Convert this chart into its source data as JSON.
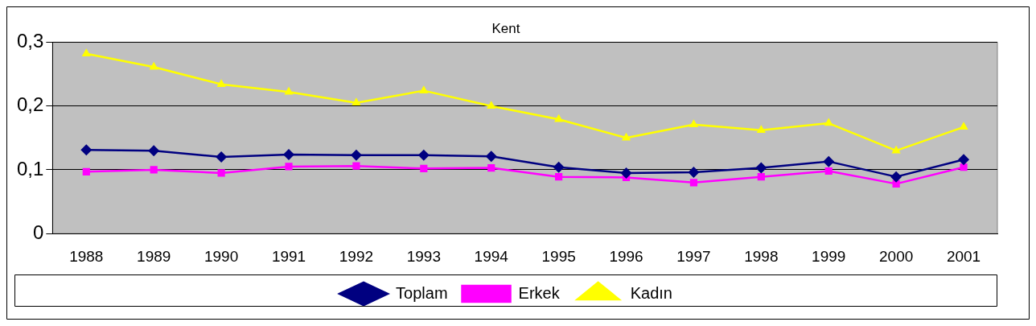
{
  "chart_data": {
    "type": "line",
    "title": "Kent",
    "categories": [
      "1988",
      "1989",
      "1990",
      "1991",
      "1992",
      "1993",
      "1994",
      "1995",
      "1996",
      "1997",
      "1998",
      "1999",
      "2000",
      "2001"
    ],
    "series": [
      {
        "name": "Toplam",
        "color": "#000080",
        "marker": "diamond",
        "values": [
          0.131,
          0.13,
          0.12,
          0.124,
          0.123,
          0.123,
          0.121,
          0.104,
          0.095,
          0.096,
          0.103,
          0.113,
          0.089,
          0.116
        ]
      },
      {
        "name": "Erkek",
        "color": "#ff00ff",
        "marker": "square",
        "values": [
          0.097,
          0.1,
          0.095,
          0.105,
          0.106,
          0.102,
          0.103,
          0.089,
          0.088,
          0.08,
          0.089,
          0.098,
          0.078,
          0.104
        ]
      },
      {
        "name": "Kadın",
        "color": "#ffff00",
        "marker": "triangle",
        "values": [
          0.282,
          0.261,
          0.234,
          0.222,
          0.205,
          0.224,
          0.2,
          0.179,
          0.15,
          0.171,
          0.162,
          0.173,
          0.13,
          0.167
        ]
      }
    ],
    "ylim": [
      0,
      0.3
    ],
    "yticks": [
      {
        "value": 0,
        "label": "0"
      },
      {
        "value": 0.1,
        "label": "0,1"
      },
      {
        "value": 0.2,
        "label": "0,2"
      },
      {
        "value": 0.3,
        "label": "0,3"
      }
    ],
    "grid": "y",
    "legend": "bottom",
    "line_style": "solid"
  }
}
